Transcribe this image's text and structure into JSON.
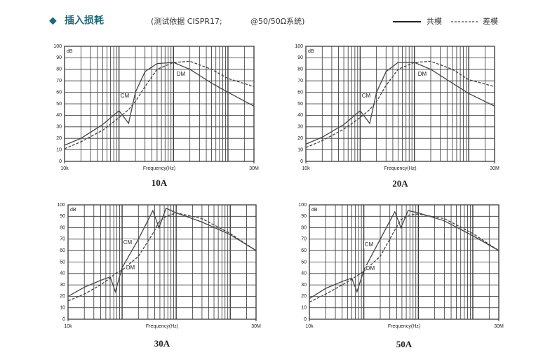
{
  "header": {
    "title": "插入损耗",
    "note": "(测试依据  CISPR17;",
    "note2": "@50/50Ω系统)"
  },
  "legend": [
    {
      "name": "共模",
      "style": "solid"
    },
    {
      "name": "差模",
      "style": "dashed"
    }
  ],
  "chart_data": [
    {
      "type": "line",
      "caption": "10A",
      "x_label": "Frequency(Hz)",
      "y_unit": "dB",
      "log_x": true,
      "grid": true,
      "xlim": [
        10000,
        30000000
      ],
      "xticks": [
        {
          "value": 10000,
          "label": "10k"
        },
        {
          "value": 30000000,
          "label": "30M"
        }
      ],
      "ylim": [
        0,
        100
      ],
      "yticks": [
        0,
        10,
        20,
        30,
        40,
        50,
        60,
        70,
        80,
        90,
        100
      ],
      "x": [
        10000,
        20000,
        50000,
        100000,
        150000,
        200000,
        300000,
        500000,
        1000000,
        2000000,
        5000000,
        10000000,
        30000000
      ],
      "series": [
        {
          "name": "CM",
          "color": "#444",
          "style": "solid",
          "values": [
            14,
            20,
            32,
            44,
            33,
            60,
            78,
            85,
            86,
            80,
            68,
            60,
            48
          ]
        },
        {
          "name": "DM",
          "color": "#444",
          "style": "dashed",
          "values": [
            11,
            17,
            27,
            38,
            45,
            52,
            65,
            80,
            86,
            87,
            80,
            72,
            65
          ]
        }
      ]
    },
    {
      "type": "line",
      "caption": "20A",
      "x_label": "Frequency(Hz)",
      "y_unit": "dB",
      "log_x": true,
      "grid": true,
      "xlim": [
        10000,
        30000000
      ],
      "xticks": [
        {
          "value": 10000,
          "label": "10k"
        },
        {
          "value": 30000000,
          "label": "30M"
        }
      ],
      "ylim": [
        0,
        100
      ],
      "yticks": [
        0,
        10,
        20,
        30,
        40,
        50,
        60,
        70,
        80,
        90,
        100
      ],
      "x": [
        10000,
        20000,
        50000,
        100000,
        150000,
        200000,
        300000,
        500000,
        1000000,
        2000000,
        5000000,
        10000000,
        30000000
      ],
      "series": [
        {
          "name": "CM",
          "color": "#444",
          "style": "solid",
          "values": [
            15,
            21,
            32,
            44,
            33,
            60,
            78,
            86,
            86,
            80,
            68,
            59,
            48
          ]
        },
        {
          "name": "DM",
          "color": "#444",
          "style": "dashed",
          "values": [
            12,
            18,
            28,
            38,
            45,
            52,
            66,
            80,
            86,
            87,
            80,
            71,
            65
          ]
        }
      ]
    },
    {
      "type": "line",
      "caption": "30A",
      "x_label": "Frequency(Hz)",
      "y_unit": "dB",
      "log_x": true,
      "grid": true,
      "xlim": [
        10000,
        30000000
      ],
      "xticks": [
        {
          "value": 10000,
          "label": "10k"
        },
        {
          "value": 30000000,
          "label": "30M"
        }
      ],
      "ylim": [
        0,
        100
      ],
      "yticks": [
        0,
        10,
        20,
        30,
        40,
        50,
        60,
        70,
        80,
        90,
        100
      ],
      "x": [
        10000,
        20000,
        40000,
        60000,
        75000,
        100000,
        200000,
        370000,
        480000,
        650000,
        1000000,
        3000000,
        10000000,
        30000000
      ],
      "series": [
        {
          "name": "CM",
          "color": "#444",
          "style": "solid",
          "values": [
            20,
            28,
            34,
            37,
            24,
            45,
            70,
            95,
            80,
            97,
            93,
            85,
            74,
            60
          ]
        },
        {
          "name": "DM",
          "color": "#444",
          "style": "dashed",
          "values": [
            16,
            22,
            30,
            36,
            40,
            43,
            55,
            75,
            85,
            90,
            93,
            88,
            75,
            60
          ]
        }
      ]
    },
    {
      "type": "line",
      "caption": "50A",
      "x_label": "Frequency(Hz)",
      "y_unit": "dB",
      "log_x": true,
      "grid": true,
      "xlim": [
        10000,
        30000000
      ],
      "xticks": [
        {
          "value": 10000,
          "label": "10k"
        },
        {
          "value": 30000000,
          "label": "30M"
        }
      ],
      "ylim": [
        0,
        100
      ],
      "yticks": [
        0,
        10,
        20,
        30,
        40,
        50,
        60,
        70,
        80,
        90,
        100
      ],
      "x": [
        10000,
        20000,
        40000,
        60000,
        75000,
        100000,
        200000,
        370000,
        480000,
        650000,
        1000000,
        3000000,
        10000000,
        30000000
      ],
      "series": [
        {
          "name": "CM",
          "color": "#444",
          "style": "solid",
          "values": [
            18,
            27,
            33,
            36,
            24,
            43,
            70,
            94,
            80,
            95,
            93,
            86,
            73,
            60
          ]
        },
        {
          "name": "DM",
          "color": "#444",
          "style": "dashed",
          "values": [
            15,
            22,
            30,
            35,
            38,
            42,
            55,
            78,
            87,
            91,
            92,
            88,
            75,
            60
          ]
        }
      ]
    }
  ]
}
